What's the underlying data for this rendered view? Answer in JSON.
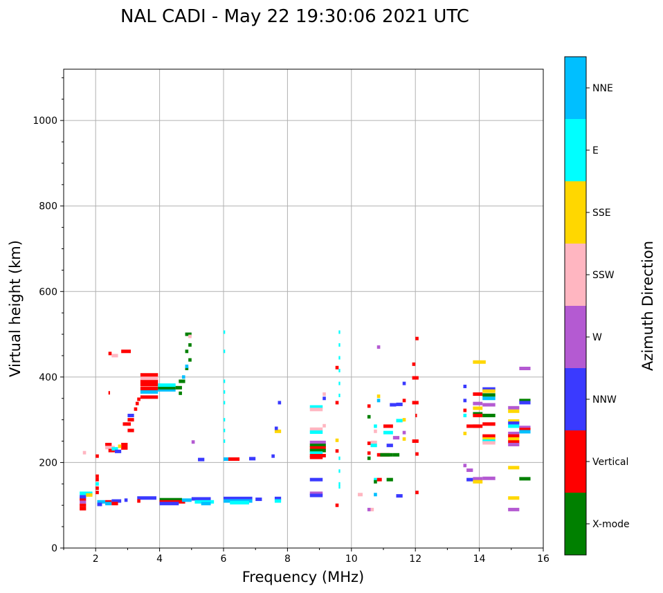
{
  "chart_data": {
    "type": "scatter",
    "title": "NAL CADI - May 22 19:30:06 2021 UTC",
    "xlabel": "Frequency (MHz)",
    "ylabel": "Virtual height (km)",
    "xlim": [
      1,
      16
    ],
    "ylim": [
      0,
      1120
    ],
    "xticks": [
      2,
      4,
      6,
      8,
      10,
      12,
      14,
      16
    ],
    "yticks": [
      0,
      200,
      400,
      600,
      800,
      1000
    ],
    "grid": true,
    "colorbar": {
      "label": "Azimuth Direction",
      "categories": [
        "X-mode",
        "Vertical",
        "NNW",
        "W",
        "SSW",
        "SSE",
        "E",
        "NNE"
      ],
      "colors": [
        "#008000",
        "#ff0000",
        "#3a3aff",
        "#b45ad2",
        "#ffb6c1",
        "#ffd700",
        "#00ffff",
        "#00bfff"
      ]
    },
    "segments_note": "each entry: [freq_start MHz, freq_end MHz, virtual height km, category index]",
    "segments": [
      [
        1.5,
        1.7,
        92,
        1
      ],
      [
        1.5,
        1.7,
        100,
        1
      ],
      [
        1.5,
        1.7,
        108,
        3
      ],
      [
        1.5,
        1.7,
        115,
        1
      ],
      [
        1.5,
        1.7,
        120,
        2
      ],
      [
        1.5,
        1.9,
        128,
        6
      ],
      [
        1.7,
        1.9,
        124,
        5
      ],
      [
        1.6,
        1.7,
        223,
        4
      ],
      [
        2.0,
        2.1,
        215,
        1
      ],
      [
        2.0,
        2.1,
        168,
        1
      ],
      [
        2.0,
        2.1,
        160,
        1
      ],
      [
        2.0,
        2.1,
        150,
        6
      ],
      [
        2.0,
        2.1,
        140,
        1
      ],
      [
        2.0,
        2.1,
        130,
        1
      ],
      [
        2.05,
        2.3,
        108,
        7
      ],
      [
        2.05,
        2.2,
        102,
        2
      ],
      [
        2.3,
        2.5,
        108,
        1
      ],
      [
        2.3,
        2.5,
        104,
        7
      ],
      [
        2.5,
        2.8,
        110,
        2
      ],
      [
        2.5,
        2.7,
        104,
        1
      ],
      [
        2.9,
        3.0,
        112,
        2
      ],
      [
        3.3,
        3.9,
        117,
        2
      ],
      [
        3.3,
        3.4,
        110,
        1
      ],
      [
        4.0,
        4.7,
        113,
        0
      ],
      [
        4.0,
        4.8,
        108,
        1
      ],
      [
        4.0,
        4.6,
        104,
        2
      ],
      [
        4.7,
        5.0,
        112,
        7
      ],
      [
        5.0,
        5.6,
        115,
        2
      ],
      [
        5.1,
        5.7,
        108,
        6
      ],
      [
        5.3,
        5.6,
        104,
        7
      ],
      [
        6.0,
        6.9,
        116,
        2
      ],
      [
        6.0,
        6.9,
        110,
        7
      ],
      [
        6.2,
        6.8,
        106,
        6
      ],
      [
        7.0,
        7.2,
        114,
        2
      ],
      [
        7.6,
        7.8,
        116,
        2
      ],
      [
        7.6,
        7.8,
        110,
        6
      ],
      [
        2.3,
        2.5,
        242,
        1
      ],
      [
        2.3,
        2.6,
        235,
        4
      ],
      [
        2.4,
        2.6,
        228,
        1
      ],
      [
        2.5,
        2.7,
        232,
        6
      ],
      [
        2.6,
        2.8,
        226,
        2
      ],
      [
        2.8,
        3.0,
        242,
        1
      ],
      [
        2.8,
        3.0,
        234,
        1
      ],
      [
        2.7,
        2.8,
        238,
        5
      ],
      [
        3.0,
        3.2,
        275,
        1
      ],
      [
        2.85,
        3.1,
        290,
        1
      ],
      [
        3.0,
        3.2,
        300,
        1
      ],
      [
        3.0,
        3.2,
        310,
        2
      ],
      [
        3.2,
        3.3,
        325,
        1
      ],
      [
        3.25,
        3.35,
        338,
        1
      ],
      [
        3.3,
        3.4,
        348,
        1
      ],
      [
        3.4,
        3.95,
        353,
        1
      ],
      [
        3.4,
        3.95,
        365,
        7
      ],
      [
        3.4,
        3.95,
        373,
        1
      ],
      [
        3.4,
        3.95,
        382,
        1
      ],
      [
        3.4,
        3.95,
        390,
        1
      ],
      [
        3.4,
        3.95,
        397,
        4
      ],
      [
        3.4,
        3.95,
        405,
        1
      ],
      [
        3.95,
        4.5,
        370,
        7
      ],
      [
        3.95,
        4.5,
        375,
        0
      ],
      [
        3.95,
        4.5,
        381,
        6
      ],
      [
        4.6,
        4.7,
        362,
        0
      ],
      [
        4.5,
        4.7,
        375,
        0
      ],
      [
        4.6,
        4.8,
        390,
        0
      ],
      [
        4.7,
        4.8,
        400,
        7
      ],
      [
        4.8,
        4.9,
        420,
        0
      ],
      [
        4.8,
        4.9,
        425,
        7
      ],
      [
        4.9,
        5.0,
        440,
        0
      ],
      [
        4.8,
        4.9,
        460,
        0
      ],
      [
        4.9,
        5.0,
        475,
        0
      ],
      [
        4.8,
        5.0,
        500,
        0
      ],
      [
        4.9,
        5.0,
        495,
        4
      ],
      [
        2.4,
        2.5,
        455,
        1
      ],
      [
        2.5,
        2.7,
        450,
        4
      ],
      [
        2.8,
        3.1,
        460,
        1
      ],
      [
        2.4,
        2.45,
        363,
        1
      ],
      [
        6.0,
        6.05,
        250,
        6
      ],
      [
        6.0,
        6.05,
        275,
        6
      ],
      [
        6.0,
        6.05,
        300,
        6
      ],
      [
        6.0,
        6.05,
        340,
        6
      ],
      [
        6.0,
        6.05,
        365,
        6
      ],
      [
        6.0,
        6.05,
        390,
        6
      ],
      [
        6.0,
        6.05,
        460,
        6
      ],
      [
        6.0,
        6.05,
        505,
        6
      ],
      [
        5.2,
        5.4,
        207,
        2
      ],
      [
        6.0,
        6.2,
        208,
        7
      ],
      [
        6.15,
        6.5,
        208,
        1
      ],
      [
        6.8,
        7.0,
        209,
        2
      ],
      [
        7.5,
        7.6,
        215,
        2
      ],
      [
        7.6,
        7.8,
        273,
        5
      ],
      [
        7.6,
        7.7,
        280,
        2
      ],
      [
        7.7,
        7.8,
        340,
        2
      ],
      [
        5.0,
        5.1,
        248,
        3
      ],
      [
        8.7,
        9.1,
        330,
        6
      ],
      [
        8.7,
        9.1,
        324,
        4
      ],
      [
        9.1,
        9.2,
        286,
        4
      ],
      [
        8.7,
        9.1,
        278,
        4
      ],
      [
        8.7,
        9.1,
        271,
        6
      ],
      [
        8.7,
        9.2,
        247,
        3
      ],
      [
        8.7,
        9.2,
        240,
        0
      ],
      [
        8.7,
        9.2,
        234,
        1
      ],
      [
        8.7,
        9.2,
        228,
        0
      ],
      [
        8.7,
        9.1,
        222,
        6
      ],
      [
        8.7,
        9.2,
        216,
        1
      ],
      [
        8.7,
        9.1,
        212,
        1
      ],
      [
        9.1,
        9.2,
        360,
        4
      ],
      [
        9.1,
        9.2,
        350,
        2
      ],
      [
        8.7,
        9.1,
        160,
        2
      ],
      [
        8.7,
        9.1,
        128,
        3
      ],
      [
        8.7,
        9.1,
        123,
        2
      ],
      [
        9.6,
        9.65,
        505,
        6
      ],
      [
        9.6,
        9.65,
        475,
        6
      ],
      [
        9.6,
        9.65,
        445,
        6
      ],
      [
        9.6,
        9.65,
        415,
        6
      ],
      [
        9.6,
        9.65,
        385,
        6
      ],
      [
        9.6,
        9.65,
        357,
        6
      ],
      [
        9.6,
        9.65,
        210,
        6
      ],
      [
        9.6,
        9.65,
        180,
        6
      ],
      [
        9.6,
        9.65,
        150,
        6
      ],
      [
        9.6,
        9.65,
        143,
        6
      ],
      [
        9.5,
        9.6,
        422,
        1
      ],
      [
        9.5,
        9.6,
        340,
        1
      ],
      [
        9.5,
        9.6,
        252,
        5
      ],
      [
        9.5,
        9.6,
        227,
        1
      ],
      [
        9.5,
        9.6,
        100,
        1
      ],
      [
        10.2,
        10.35,
        125,
        4
      ],
      [
        10.5,
        10.6,
        90,
        3
      ],
      [
        10.6,
        10.7,
        90,
        4
      ],
      [
        10.7,
        10.8,
        125,
        7
      ],
      [
        10.7,
        10.8,
        160,
        6
      ],
      [
        10.7,
        10.8,
        155,
        0
      ],
      [
        10.8,
        10.95,
        160,
        1
      ],
      [
        11.1,
        11.3,
        160,
        0
      ],
      [
        11.4,
        11.6,
        122,
        2
      ],
      [
        10.5,
        10.6,
        332,
        1
      ],
      [
        10.5,
        10.6,
        307,
        0
      ],
      [
        10.5,
        10.6,
        245,
        1
      ],
      [
        10.5,
        10.6,
        222,
        1
      ],
      [
        10.5,
        10.6,
        210,
        0
      ],
      [
        10.6,
        10.8,
        247,
        4
      ],
      [
        10.6,
        10.8,
        240,
        6
      ],
      [
        10.7,
        10.8,
        285,
        6
      ],
      [
        10.7,
        10.8,
        273,
        4
      ],
      [
        10.8,
        10.9,
        355,
        5
      ],
      [
        10.8,
        10.9,
        345,
        7
      ],
      [
        10.8,
        10.9,
        470,
        3
      ],
      [
        10.8,
        11.2,
        218,
        1
      ],
      [
        10.9,
        11.3,
        218,
        0
      ],
      [
        11.3,
        11.5,
        218,
        0
      ],
      [
        11.1,
        11.3,
        240,
        2
      ],
      [
        11.0,
        11.3,
        285,
        1
      ],
      [
        11.0,
        11.3,
        270,
        6
      ],
      [
        11.3,
        11.5,
        258,
        3
      ],
      [
        11.2,
        11.4,
        335,
        2
      ],
      [
        11.4,
        11.6,
        336,
        2
      ],
      [
        11.4,
        11.6,
        298,
        6
      ],
      [
        11.6,
        11.7,
        345,
        1
      ],
      [
        11.6,
        11.7,
        300,
        5
      ],
      [
        11.6,
        11.7,
        270,
        3
      ],
      [
        11.6,
        11.7,
        255,
        5
      ],
      [
        11.6,
        11.7,
        385,
        2
      ],
      [
        11.9,
        12.0,
        430,
        1
      ],
      [
        11.9,
        12.1,
        398,
        1
      ],
      [
        11.9,
        12.1,
        340,
        1
      ],
      [
        12.0,
        12.1,
        490,
        1
      ],
      [
        12.0,
        12.05,
        310,
        1
      ],
      [
        11.9,
        12.1,
        250,
        1
      ],
      [
        12.0,
        12.1,
        220,
        1
      ],
      [
        12.0,
        12.1,
        130,
        1
      ],
      [
        13.5,
        13.6,
        378,
        2
      ],
      [
        13.5,
        13.6,
        345,
        2
      ],
      [
        13.5,
        13.6,
        322,
        1
      ],
      [
        13.5,
        13.6,
        310,
        6
      ],
      [
        13.5,
        13.6,
        268,
        5
      ],
      [
        13.5,
        13.6,
        193,
        3
      ],
      [
        13.6,
        13.8,
        182,
        3
      ],
      [
        13.6,
        14.0,
        285,
        1
      ],
      [
        13.8,
        14.2,
        435,
        5
      ],
      [
        13.8,
        14.1,
        360,
        1
      ],
      [
        13.8,
        14.1,
        338,
        3
      ],
      [
        13.8,
        14.1,
        327,
        5
      ],
      [
        13.8,
        14.1,
        314,
        0
      ],
      [
        13.8,
        14.1,
        310,
        1
      ],
      [
        13.8,
        14.1,
        285,
        1
      ],
      [
        13.8,
        14.1,
        162,
        3
      ],
      [
        13.8,
        14.1,
        155,
        5
      ],
      [
        13.6,
        13.8,
        160,
        2
      ],
      [
        14.1,
        14.5,
        372,
        2
      ],
      [
        14.1,
        14.5,
        367,
        5
      ],
      [
        14.1,
        14.5,
        358,
        0
      ],
      [
        14.1,
        14.5,
        350,
        7
      ],
      [
        14.1,
        14.5,
        335,
        3
      ],
      [
        14.1,
        14.5,
        310,
        0
      ],
      [
        14.1,
        14.5,
        290,
        1
      ],
      [
        14.1,
        14.5,
        262,
        1
      ],
      [
        14.1,
        14.5,
        255,
        5
      ],
      [
        14.1,
        14.5,
        250,
        6
      ],
      [
        14.1,
        14.5,
        246,
        4
      ],
      [
        14.1,
        14.5,
        163,
        3
      ],
      [
        14.9,
        15.25,
        328,
        3
      ],
      [
        14.9,
        15.25,
        320,
        5
      ],
      [
        14.9,
        15.25,
        297,
        5
      ],
      [
        14.9,
        15.25,
        292,
        2
      ],
      [
        14.9,
        15.25,
        285,
        6
      ],
      [
        14.9,
        15.25,
        268,
        3
      ],
      [
        14.9,
        15.25,
        262,
        1
      ],
      [
        14.9,
        15.25,
        255,
        5
      ],
      [
        14.9,
        15.25,
        248,
        1
      ],
      [
        14.9,
        15.25,
        242,
        3
      ],
      [
        14.9,
        15.25,
        188,
        5
      ],
      [
        14.9,
        15.25,
        117,
        5
      ],
      [
        14.9,
        15.25,
        90,
        3
      ],
      [
        15.25,
        15.6,
        420,
        3
      ],
      [
        15.25,
        15.6,
        345,
        0
      ],
      [
        15.25,
        15.6,
        340,
        2
      ],
      [
        15.25,
        15.6,
        282,
        3
      ],
      [
        15.25,
        15.6,
        277,
        1
      ],
      [
        15.25,
        15.6,
        272,
        7
      ],
      [
        15.25,
        15.6,
        162,
        0
      ]
    ]
  }
}
